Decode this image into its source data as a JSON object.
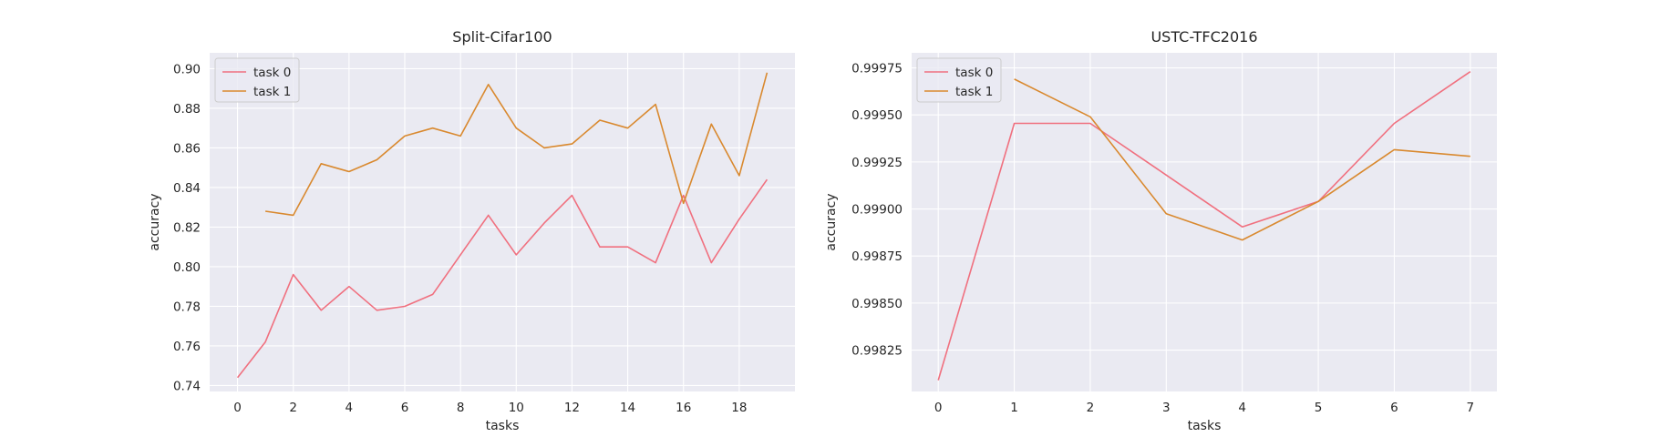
{
  "chart_data": [
    {
      "type": "line",
      "title": "Split-Cifar100",
      "xlabel": "tasks",
      "ylabel": "accuracy",
      "xlim": [
        -1,
        20
      ],
      "ylim": [
        0.737,
        0.908
      ],
      "xticks": [
        0,
        2,
        4,
        6,
        8,
        10,
        12,
        14,
        16,
        18
      ],
      "yticks": [
        0.74,
        0.76,
        0.78,
        0.8,
        0.82,
        0.84,
        0.86,
        0.88,
        0.9
      ],
      "ytick_labels": [
        "0.74",
        "0.76",
        "0.78",
        "0.80",
        "0.82",
        "0.84",
        "0.86",
        "0.88",
        "0.90"
      ],
      "grid": true,
      "legend_position": "top-left",
      "series": [
        {
          "name": "task 0",
          "color": "#f0707f",
          "x": [
            0,
            1,
            2,
            3,
            4,
            5,
            6,
            7,
            8,
            9,
            10,
            11,
            12,
            13,
            14,
            15,
            16,
            17,
            18,
            19
          ],
          "y": [
            0.744,
            0.762,
            0.796,
            0.778,
            0.79,
            0.778,
            0.78,
            0.786,
            0.806,
            0.826,
            0.806,
            0.822,
            0.836,
            0.81,
            0.81,
            0.802,
            0.836,
            0.802,
            0.824,
            0.844
          ]
        },
        {
          "name": "task 1",
          "color": "#d9892f",
          "x": [
            1,
            2,
            3,
            4,
            5,
            6,
            7,
            8,
            9,
            10,
            11,
            12,
            13,
            14,
            15,
            16,
            17,
            18,
            19
          ],
          "y": [
            0.828,
            0.826,
            0.852,
            0.848,
            0.854,
            0.866,
            0.87,
            0.866,
            0.892,
            0.87,
            0.86,
            0.862,
            0.874,
            0.87,
            0.882,
            0.832,
            0.872,
            0.846,
            0.898
          ]
        }
      ]
    },
    {
      "type": "line",
      "title": "USTC-TFC2016",
      "xlabel": "tasks",
      "ylabel": "accuracy",
      "xlim": [
        -0.35,
        7.35
      ],
      "ylim": [
        0.99803,
        0.99983
      ],
      "xticks": [
        0,
        1,
        2,
        3,
        4,
        5,
        6,
        7
      ],
      "yticks": [
        0.99825,
        0.9985,
        0.99875,
        0.999,
        0.99925,
        0.9995,
        0.99975
      ],
      "ytick_labels": [
        "0.99825",
        "0.99850",
        "0.99875",
        "0.99900",
        "0.99925",
        "0.99950",
        "0.99975"
      ],
      "grid": true,
      "legend_position": "top-left",
      "series": [
        {
          "name": "task 0",
          "color": "#f0707f",
          "x": [
            0,
            1,
            2,
            3,
            4,
            5,
            6,
            7
          ],
          "y": [
            0.99809,
            0.999455,
            0.999455,
            0.99918,
            0.998905,
            0.99904,
            0.999455,
            0.99973
          ]
        },
        {
          "name": "task 1",
          "color": "#d9892f",
          "x": [
            1,
            2,
            3,
            4,
            5,
            6,
            7
          ],
          "y": [
            0.99969,
            0.99949,
            0.998975,
            0.998835,
            0.99904,
            0.999315,
            0.99928
          ]
        }
      ]
    }
  ]
}
